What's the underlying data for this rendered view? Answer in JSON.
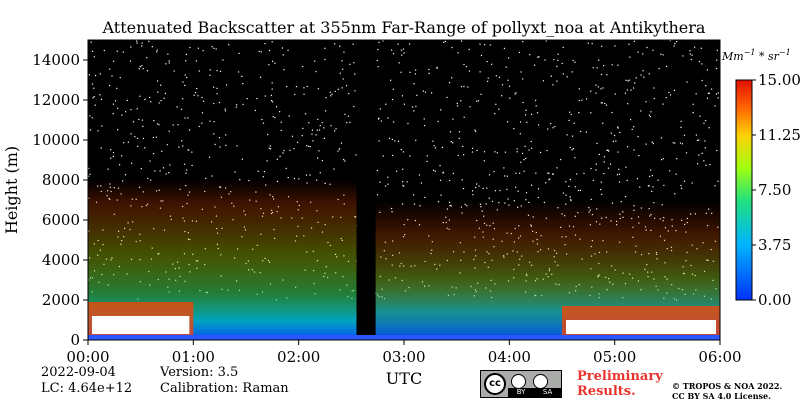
{
  "chart_data": {
    "type": "heatmap",
    "title": "Attenuated Backscatter at 355nm Far-Range of pollyxt_noa at Antikythera",
    "xlabel": "UTC",
    "ylabel": "Height (m)",
    "x_ticks": [
      "00:00",
      "01:00",
      "02:00",
      "03:00",
      "04:00",
      "05:00",
      "06:00"
    ],
    "x_range_hours": [
      0,
      6
    ],
    "y_ticks": [
      0,
      2000,
      4000,
      6000,
      8000,
      10000,
      12000,
      14000
    ],
    "y_range": [
      0,
      15000
    ],
    "colorbar": {
      "label": "Mm^{-1}*sr^{-1}",
      "ticks": [
        "0.00",
        "3.75",
        "7.50",
        "11.25",
        "15.00"
      ],
      "range": [
        0,
        15
      ]
    },
    "gap_utc_hours": [
      2.55,
      2.73
    ],
    "features": [
      {
        "label": "high backscatter layer",
        "start_h": 0.0,
        "end_h": 1.0,
        "top_m": 1200
      },
      {
        "label": "high backscatter layer",
        "start_h": 4.5,
        "end_h": 6.0,
        "top_m": 1000
      }
    ]
  },
  "info": {
    "date": "2022-09-04",
    "lc": "LC: 4.64e+12",
    "version": "Version: 3.5",
    "calibration": "Calibration: Raman"
  },
  "license": {
    "preliminary_line1": "Preliminary",
    "preliminary_line2": "Results.",
    "copyright_line1": "© TROPOS & NOA 2022.",
    "copyright_line2": "CC BY SA 4.0 License.",
    "cc_text": "cc",
    "by_text": "BY",
    "sa_text": "SA"
  }
}
